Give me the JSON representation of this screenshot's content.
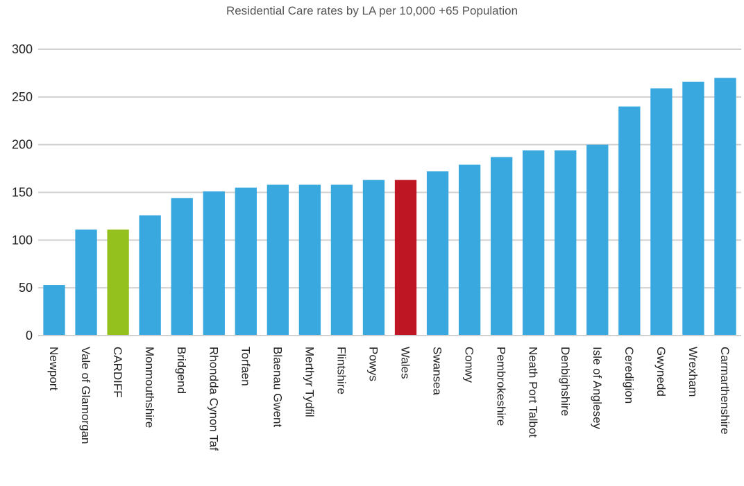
{
  "chart_data": {
    "type": "bar",
    "title": "Residential Care rates by LA per 10,000 +65 Population",
    "xlabel": "",
    "ylabel": "",
    "ylim": [
      0,
      300
    ],
    "yticks": [
      0,
      50,
      100,
      150,
      200,
      250,
      300
    ],
    "grid": true,
    "legend": "none",
    "categories": [
      "Newport",
      "Vale of Glamorgan",
      "CARDIFF",
      "Monmouthshire",
      "Bridgend",
      "Rhondda Cynon Taf",
      "Torfaen",
      "Blaenau Gwent",
      "Merthyr Tydfil",
      "Flintshire",
      "Powys",
      "Wales",
      "Swansea",
      "Conwy",
      "Pembrokeshire",
      "Neath Port Talbot",
      "Denbighshire",
      "Isle of Anglesey",
      "Ceredigion",
      "Gwynedd",
      "Wrexham",
      "Carmarthenshire"
    ],
    "values": [
      53,
      111,
      111,
      126,
      144,
      151,
      155,
      158,
      158,
      158,
      163,
      163,
      172,
      179,
      187,
      194,
      194,
      200,
      240,
      259,
      266,
      270
    ],
    "colors": {
      "default": "#38A8DF",
      "highlight": {
        "CARDIFF": "#95C11F",
        "Wales": "#BE1622"
      },
      "grid": "#D0D0D0",
      "text": "#222222"
    }
  }
}
